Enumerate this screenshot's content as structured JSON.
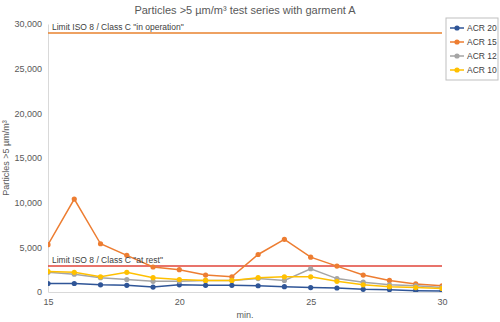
{
  "chart_data": {
    "type": "line",
    "title": "Particles >5 µm/m³ test series with garment A",
    "x_label": "min.",
    "y_label": "Particles >5 µm/m³",
    "x": [
      15,
      16,
      17,
      18,
      19,
      20,
      21,
      22,
      23,
      24,
      25,
      26,
      27,
      28,
      29,
      30
    ],
    "xlim": [
      15,
      30
    ],
    "xticks": [
      15,
      20,
      25,
      30
    ],
    "ylim": [
      0,
      30000
    ],
    "yticks": [
      0,
      {
        "value": 5000,
        "label": "5,000"
      },
      {
        "value": 10000,
        "label": "10,000"
      },
      {
        "value": 15000,
        "label": "15,000"
      },
      {
        "value": 20000,
        "label": "20,000"
      },
      {
        "value": 25000,
        "label": "25,000"
      },
      {
        "value": 30000,
        "label": "30,000"
      }
    ],
    "grid": false,
    "legend": "upper right",
    "marker": "circle",
    "series": [
      {
        "name": "ACR 20",
        "color": "#2f5597",
        "values": [
          950,
          950,
          800,
          750,
          550,
          800,
          750,
          750,
          700,
          600,
          500,
          450,
          300,
          250,
          150,
          100
        ]
      },
      {
        "name": "ACR 15",
        "color": "#ed7d31",
        "values": [
          5300,
          10400,
          5400,
          4100,
          2800,
          2500,
          1900,
          1700,
          4200,
          5900,
          3900,
          2900,
          1900,
          1300,
          900,
          700
        ]
      },
      {
        "name": "ACR 12",
        "color": "#a5a5a5",
        "values": [
          2200,
          2000,
          1600,
          1400,
          1200,
          1200,
          1300,
          1300,
          1500,
          1300,
          2600,
          1500,
          1100,
          800,
          700,
          500
        ]
      },
      {
        "name": "ACR 10",
        "color": "#ffc000",
        "values": [
          2300,
          2200,
          1700,
          2200,
          1600,
          1400,
          1300,
          1300,
          1600,
          1700,
          1700,
          1200,
          800,
          600,
          500,
          400
        ]
      }
    ],
    "reference_lines": [
      {
        "label": "Limit ISO 8 / Class C \"in operation\"",
        "value": 29000,
        "color": "#e8822e"
      },
      {
        "label": "Limit ISO 8 / Class C \"at rest\"",
        "value": 2900,
        "color": "#e0443a"
      }
    ]
  }
}
